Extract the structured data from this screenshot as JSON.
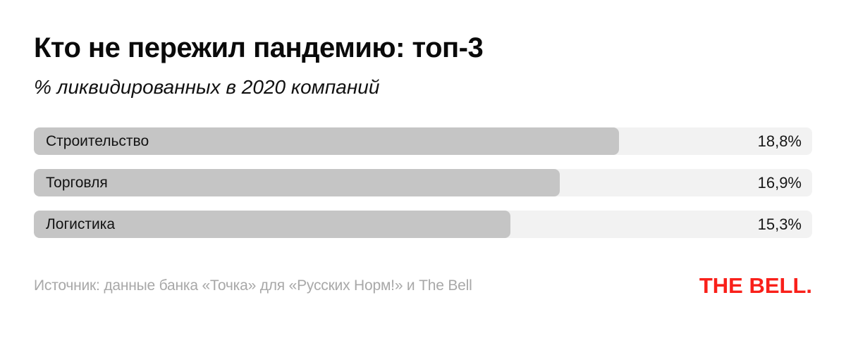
{
  "header": {
    "title": "Кто не пережил пандемию: топ-3",
    "subtitle": "% ликвидированных в 2020 компаний"
  },
  "footer": {
    "source": "Источник: данные банка «Точка» для «Русских Норм!» и The Bell",
    "logo": "THE BELL."
  },
  "colors": {
    "bar_fill": "#c5c5c5",
    "bar_track": "#f2f2f2",
    "accent_red": "#f9201a",
    "source_gray": "#a8a8a8",
    "text": "#0b0b0b"
  },
  "chart_data": {
    "type": "bar",
    "orientation": "horizontal",
    "title": "Кто не пережил пандемию: топ-3",
    "subtitle": "% ликвидированных в 2020 компаний",
    "categories": [
      "Строительство",
      "Торговля",
      "Логистика"
    ],
    "values": [
      18.8,
      16.9,
      15.3
    ],
    "value_labels": [
      "18,8%",
      "16,9%",
      "15,3%"
    ],
    "xlim": [
      0,
      25
    ],
    "grid": false,
    "legend": false,
    "value_label_position": "inside-right",
    "category_label_position": "inside-left",
    "source": "Источник: данные банка «Точка» для «Русских Норм!» и The Bell"
  }
}
